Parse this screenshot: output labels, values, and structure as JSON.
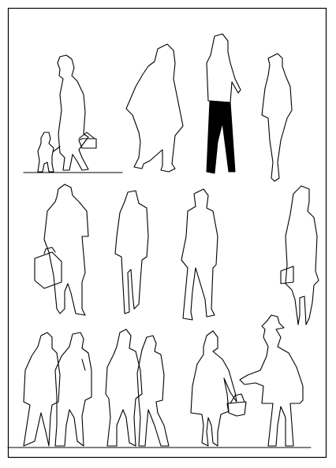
{
  "drawing": {
    "title": "",
    "line_color": "#000000",
    "background": "#ffffff",
    "figures": [
      {
        "name": "woman-with-child-and-handbag"
      },
      {
        "name": "walking-figure-in-coat"
      },
      {
        "name": "man-in-dark-trousers"
      },
      {
        "name": "standing-slim-figure"
      },
      {
        "name": "man-with-briefcase"
      },
      {
        "name": "man-hands-in-pockets"
      },
      {
        "name": "man-in-jacket-walking"
      },
      {
        "name": "woman-with-bag"
      },
      {
        "name": "group-of-four"
      },
      {
        "name": "woman-with-basket"
      },
      {
        "name": "man-in-hat-and-coat"
      }
    ]
  }
}
